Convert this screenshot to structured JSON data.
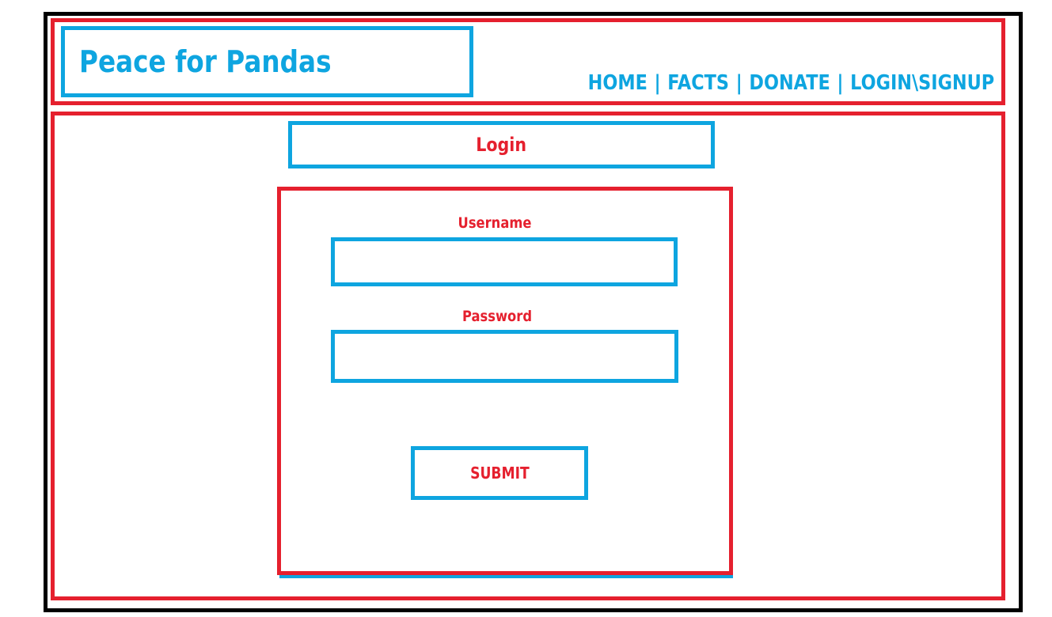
{
  "header": {
    "site_title": "Peace for Pandas",
    "nav": {
      "home": "HOME",
      "facts": "FACTS",
      "donate": "DONATE",
      "login_signup": "LOGIN\\SIGNUP",
      "separator": "|"
    }
  },
  "main": {
    "page_title": "Login",
    "form": {
      "username_label": "Username",
      "username_value": "",
      "password_label": "Password",
      "password_value": "",
      "submit_label": "SUBMIT"
    }
  },
  "colors": {
    "accent_blue": "#0ea5e0",
    "accent_red": "#e5202e",
    "frame_black": "#000000"
  }
}
